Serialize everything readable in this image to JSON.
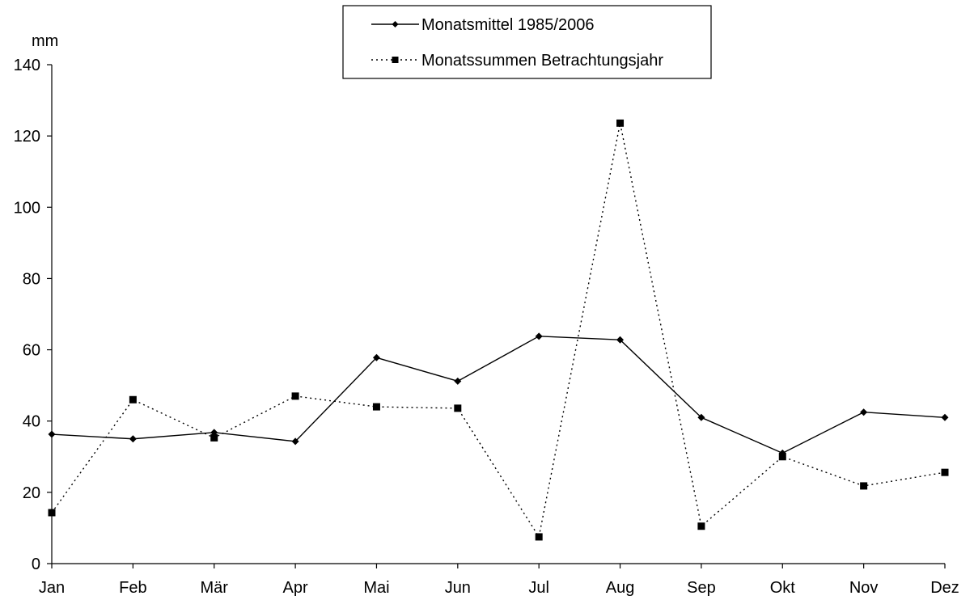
{
  "chart_data": {
    "type": "line",
    "y_unit_label": "mm",
    "categories": [
      "Jan",
      "Feb",
      "Mär",
      "Apr",
      "Mai",
      "Jun",
      "Jul",
      "Aug",
      "Sep",
      "Okt",
      "Nov",
      "Dez"
    ],
    "ylim": [
      0,
      140
    ],
    "y_ticks": [
      0,
      20,
      40,
      60,
      80,
      100,
      120,
      140
    ],
    "grid": false,
    "legend_position": "top-center",
    "series": [
      {
        "name": "Monatsmittel 1985/2006",
        "line_style": "solid",
        "marker": "diamond",
        "color": "#000000",
        "values": [
          36.3,
          35.0,
          36.8,
          34.3,
          57.8,
          51.2,
          63.8,
          62.8,
          41.0,
          31.0,
          42.5,
          41.0
        ]
      },
      {
        "name": "Monatssummen Betrachtungsjahr",
        "line_style": "dotted",
        "marker": "square",
        "color": "#000000",
        "values": [
          14.3,
          46.0,
          35.3,
          47.0,
          44.0,
          43.6,
          7.5,
          123.6,
          10.5,
          30.0,
          21.8,
          25.6
        ]
      }
    ]
  }
}
